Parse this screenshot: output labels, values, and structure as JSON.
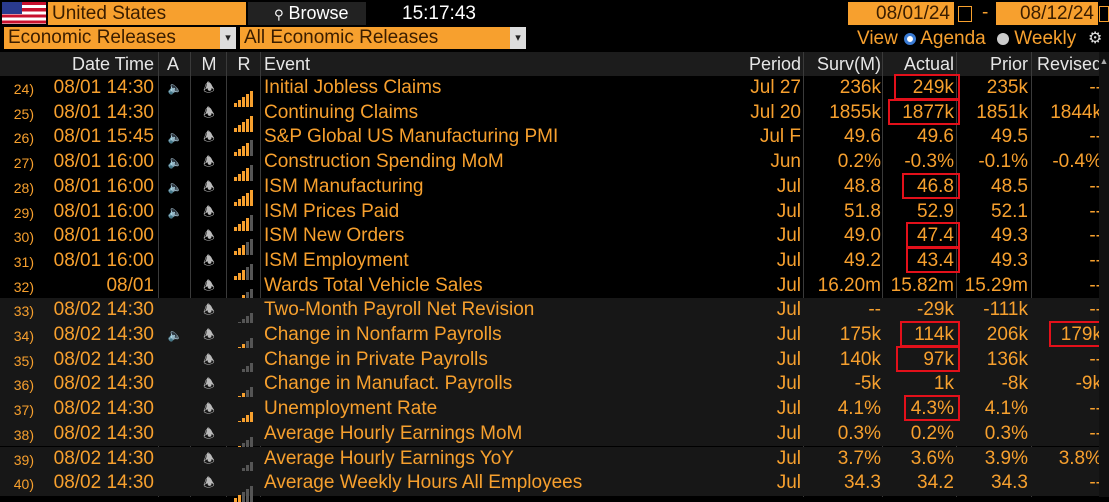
{
  "toolbar": {
    "country": "United States",
    "browse": "Browse",
    "time": "15:17:43",
    "date_from": "08/01/24",
    "date_to": "08/12/24",
    "dash": "-"
  },
  "filters": {
    "category": "Economic Releases",
    "subset": "All Economic Releases",
    "view_label": "View",
    "agenda": "Agenda",
    "weekly": "Weekly"
  },
  "columns": {
    "datetime": "Date Time",
    "a": "A",
    "m": "M",
    "r": "R",
    "event": "Event",
    "period": "Period",
    "surv": "Surv(M)",
    "actual": "Actual",
    "prior": "Prior",
    "revised": "Revised"
  },
  "rows": [
    {
      "num": "24)",
      "dt": "08/01 14:30",
      "a": true,
      "rel": 5,
      "event": "Initial Jobless Claims",
      "period": "Jul 27",
      "surv": "236k",
      "actual": "249k",
      "prior": "235k",
      "revised": "--"
    },
    {
      "num": "25)",
      "dt": "08/01 14:30",
      "a": false,
      "rel": 5,
      "event": "Continuing Claims",
      "period": "Jul 20",
      "surv": "1855k",
      "actual": "1877k",
      "prior": "1851k",
      "revised": "1844k"
    },
    {
      "num": "26)",
      "dt": "08/01 15:45",
      "a": true,
      "rel": 4,
      "event": "S&P Global US Manufacturing PMI",
      "period": "Jul F",
      "surv": "49.6",
      "actual": "49.6",
      "prior": "49.5",
      "revised": "--"
    },
    {
      "num": "27)",
      "dt": "08/01 16:00",
      "a": true,
      "rel": 4,
      "event": "Construction Spending MoM",
      "period": "Jun",
      "surv": "0.2%",
      "actual": "-0.3%",
      "prior": "-0.1%",
      "revised": "-0.4%"
    },
    {
      "num": "28)",
      "dt": "08/01 16:00",
      "a": true,
      "rel": 5,
      "event": "ISM Manufacturing",
      "period": "Jul",
      "surv": "48.8",
      "actual": "46.8",
      "prior": "48.5",
      "revised": "--"
    },
    {
      "num": "29)",
      "dt": "08/01 16:00",
      "a": true,
      "rel": 4,
      "event": "ISM Prices Paid",
      "period": "Jul",
      "surv": "51.8",
      "actual": "52.9",
      "prior": "52.1",
      "revised": "--"
    },
    {
      "num": "30)",
      "dt": "08/01 16:00",
      "a": false,
      "rel": 3,
      "event": "ISM New Orders",
      "period": "Jul",
      "surv": "49.0",
      "actual": "47.4",
      "prior": "49.3",
      "revised": "--"
    },
    {
      "num": "31)",
      "dt": "08/01 16:00",
      "a": false,
      "rel": 3,
      "event": "ISM Employment",
      "period": "Jul",
      "surv": "49.2",
      "actual": "43.4",
      "prior": "49.3",
      "revised": "--"
    },
    {
      "num": "32)",
      "dt": "08/01",
      "a": false,
      "rel": 3,
      "event": "Wards Total Vehicle Sales",
      "period": "Jul",
      "surv": "16.20m",
      "actual": "15.82m",
      "prior": "15.29m",
      "revised": "--"
    },
    {
      "num": "33)",
      "dt": "08/02 14:30",
      "a": false,
      "rel": 1,
      "event": "Two-Month Payroll Net Revision",
      "period": "Jul",
      "surv": "--",
      "actual": "-29k",
      "prior": "-111k",
      "revised": "--"
    },
    {
      "num": "34)",
      "dt": "08/02 14:30",
      "a": true,
      "rel": 3,
      "event": "Change in Nonfarm Payrolls",
      "period": "Jul",
      "surv": "175k",
      "actual": "114k",
      "prior": "206k",
      "revised": "179k"
    },
    {
      "num": "35)",
      "dt": "08/02 14:30",
      "a": false,
      "rel": 1,
      "event": "Change in Private Payrolls",
      "period": "Jul",
      "surv": "140k",
      "actual": "97k",
      "prior": "136k",
      "revised": "--"
    },
    {
      "num": "36)",
      "dt": "08/02 14:30",
      "a": false,
      "rel": 3,
      "event": "Change in Manufact. Payrolls",
      "period": "Jul",
      "surv": "-5k",
      "actual": "1k",
      "prior": "-8k",
      "revised": "-9k"
    },
    {
      "num": "37)",
      "dt": "08/02 14:30",
      "a": false,
      "rel": 5,
      "event": "Unemployment Rate",
      "period": "Jul",
      "surv": "4.1%",
      "actual": "4.3%",
      "prior": "4.1%",
      "revised": "--"
    },
    {
      "num": "38)",
      "dt": "08/02 14:30",
      "a": false,
      "rel": 2,
      "event": "Average Hourly Earnings MoM",
      "period": "Jul",
      "surv": "0.3%",
      "actual": "0.2%",
      "prior": "0.3%",
      "revised": "--"
    },
    {
      "num": "39)",
      "dt": "08/02 14:30",
      "a": false,
      "rel": 2,
      "event": "Average Hourly Earnings YoY",
      "period": "Jul",
      "surv": "3.7%",
      "actual": "3.6%",
      "prior": "3.9%",
      "revised": "3.8%"
    },
    {
      "num": "40)",
      "dt": "08/02 14:30",
      "a": false,
      "rel": 2,
      "event": "Average Weekly Hours All Employees",
      "period": "Jul",
      "surv": "34.3",
      "actual": "34.2",
      "prior": "34.3",
      "revised": "--"
    }
  ],
  "highlight_actual_rows": [
    0,
    1,
    4,
    6,
    7,
    10,
    11,
    13
  ],
  "highlight_revised_rows": [
    10
  ],
  "colors": {
    "accent": "#f7a02e",
    "highlight": "#e3101a",
    "background": "#000000"
  }
}
